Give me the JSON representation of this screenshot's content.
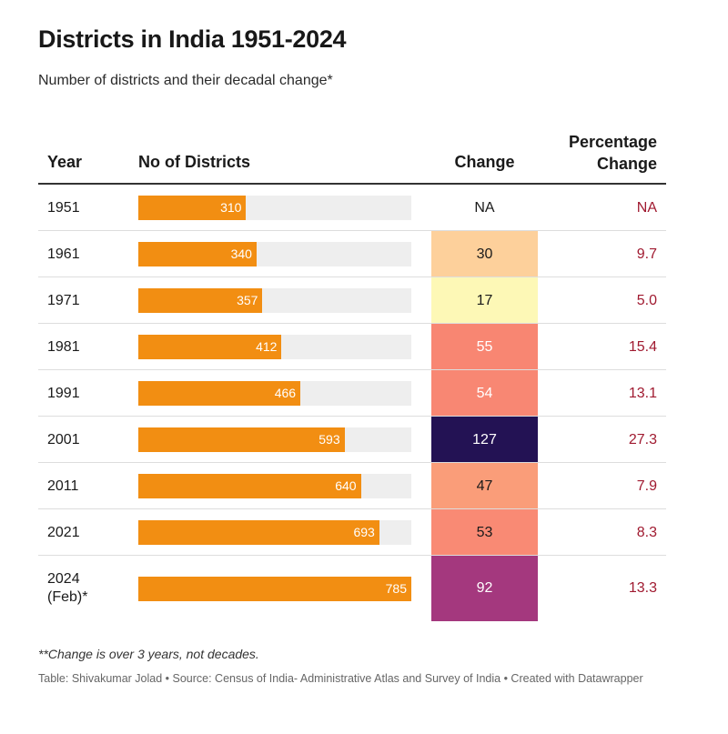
{
  "title": "Districts in India 1951-2024",
  "subtitle": "Number of districts and their decadal change*",
  "headers": {
    "year": "Year",
    "districts": "No of Districts",
    "change": "Change",
    "percentage_line1": "Percentage",
    "percentage_line2": "Change"
  },
  "footnote": "**Change is over 3 years, not decades.",
  "source": "Table: Shivakumar Jolad • Source: Census of India- Administrative Atlas and Survey of India • Created with Datawrapper",
  "colors": {
    "bar": "#f28e12",
    "bar_track": "#eeeeee",
    "percentage_text": "#a01a30"
  },
  "chart_data": {
    "type": "table",
    "bar_max": 785,
    "rows": [
      {
        "year": "1951",
        "districts": 310,
        "change": "NA",
        "percentage": "NA",
        "change_color": "#ffffff",
        "change_text_color": "#1a1a1a"
      },
      {
        "year": "1961",
        "districts": 340,
        "change": "30",
        "percentage": "9.7",
        "change_color": "#fdd09b",
        "change_text_color": "#1a1a1a"
      },
      {
        "year": "1971",
        "districts": 357,
        "change": "17",
        "percentage": "5.0",
        "change_color": "#fdf8b6",
        "change_text_color": "#1a1a1a"
      },
      {
        "year": "1981",
        "districts": 412,
        "change": "55",
        "percentage": "15.4",
        "change_color": "#f88672",
        "change_text_color": "#ffffff"
      },
      {
        "year": "1991",
        "districts": 466,
        "change": "54",
        "percentage": "13.1",
        "change_color": "#f88773",
        "change_text_color": "#ffffff"
      },
      {
        "year": "2001",
        "districts": 593,
        "change": "127",
        "percentage": "27.3",
        "change_color": "#231254",
        "change_text_color": "#ffffff"
      },
      {
        "year": "2011",
        "districts": 640,
        "change": "47",
        "percentage": "7.9",
        "change_color": "#fa9d79",
        "change_text_color": "#1a1a1a"
      },
      {
        "year": "2021",
        "districts": 693,
        "change": "53",
        "percentage": "8.3",
        "change_color": "#f98a74",
        "change_text_color": "#1a1a1a"
      },
      {
        "year": "2024\n(Feb)*",
        "districts": 785,
        "change": "92",
        "percentage": "13.3",
        "change_color": "#a4387e",
        "change_text_color": "#ffffff"
      }
    ]
  }
}
